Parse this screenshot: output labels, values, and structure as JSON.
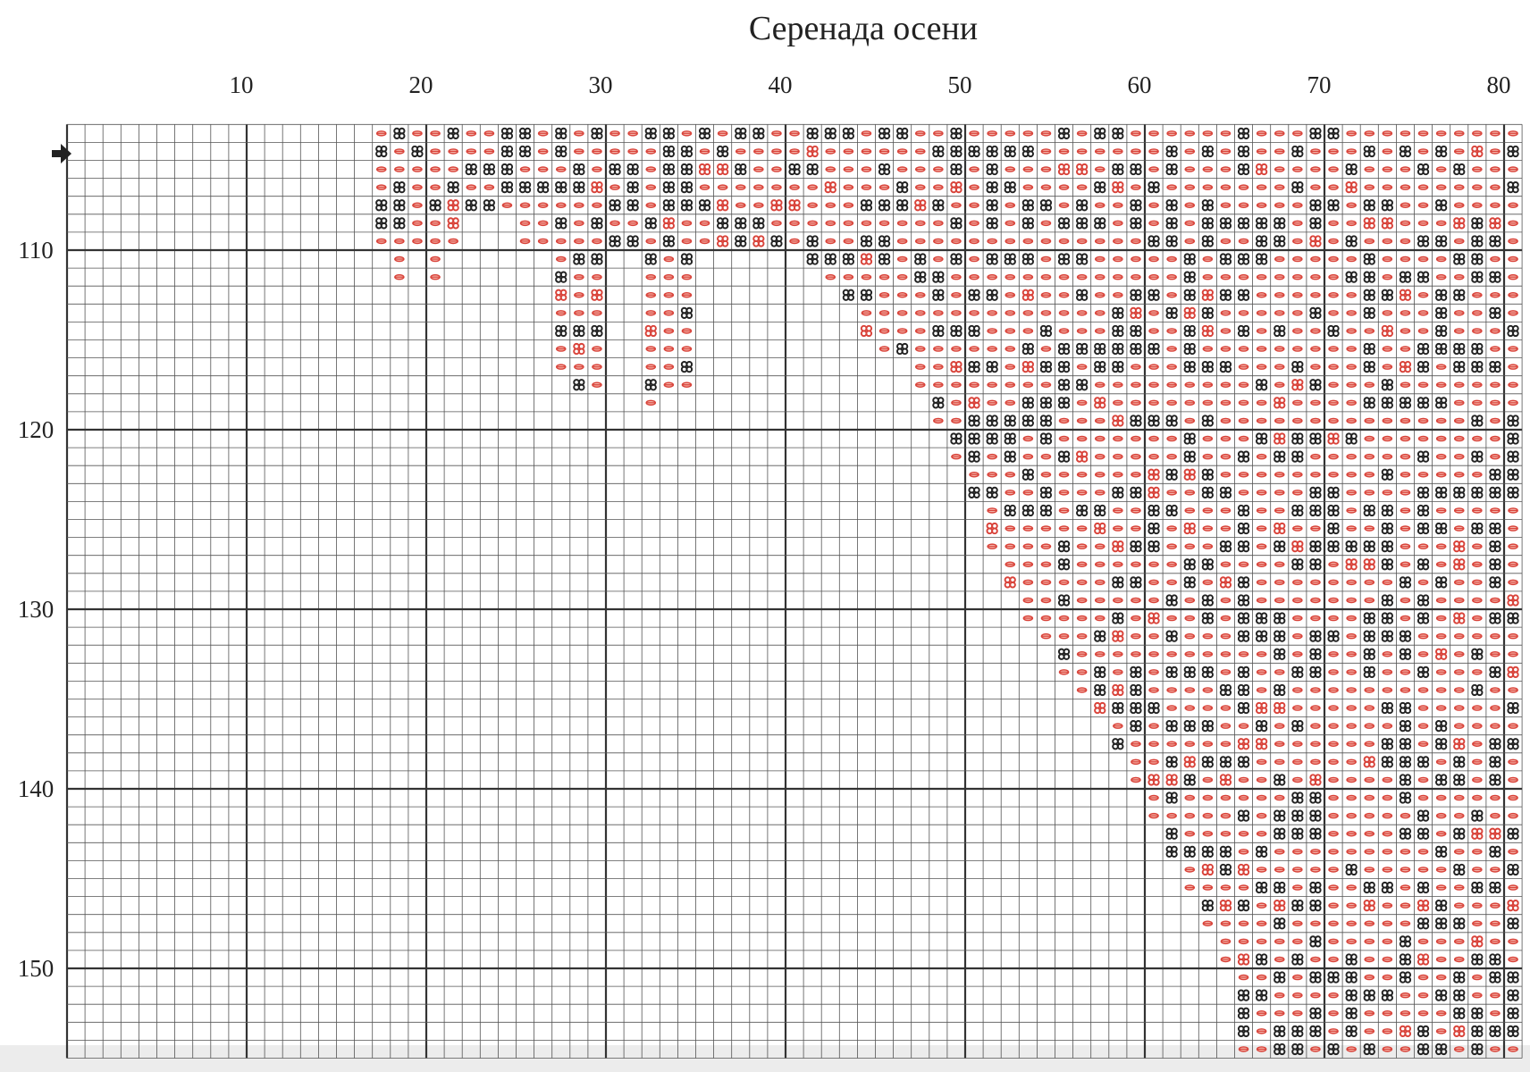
{
  "title": "Серенада осени",
  "column_labels": [
    10,
    20,
    30,
    40,
    50,
    60,
    70,
    80
  ],
  "row_labels": [
    110,
    120,
    130,
    140,
    150
  ]
}
